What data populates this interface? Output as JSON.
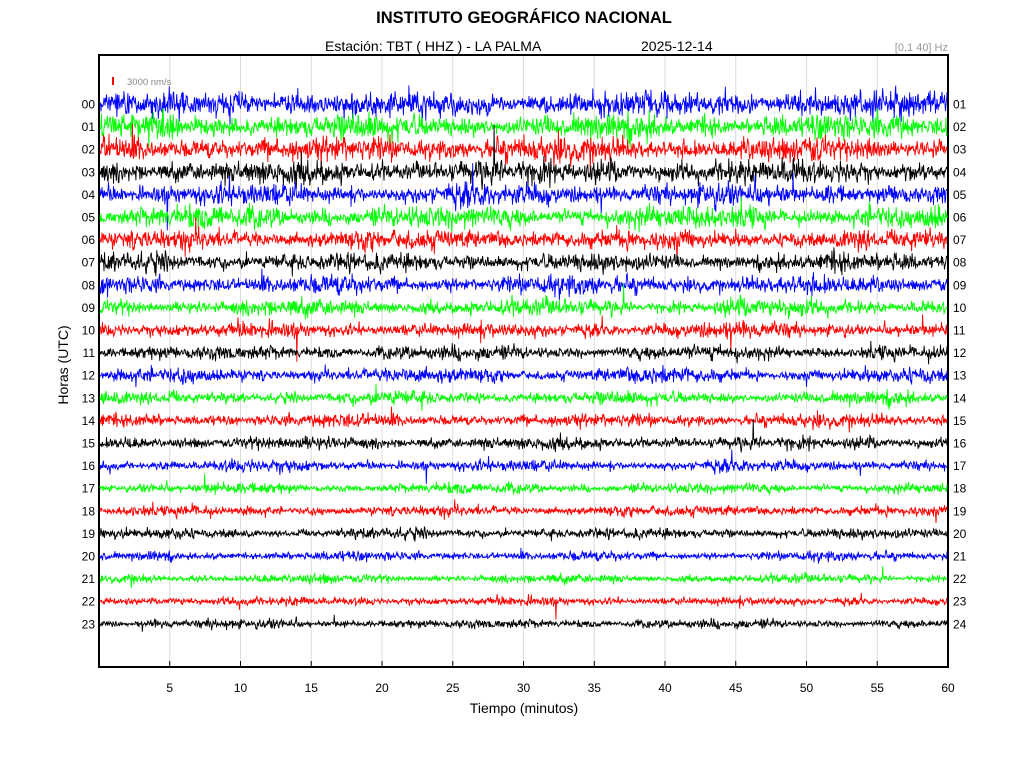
{
  "header": {
    "title": "INSTITUTO GEOGRÁFICO NACIONAL",
    "station": "Estación:  TBT ( HHZ ) - LA PALMA",
    "date": "2025-12-14",
    "filter": "[0.1 40] Hz"
  },
  "chart_data": {
    "type": "line",
    "title": "INSTITUTO GEOGRÁFICO NACIONAL",
    "xlabel": "Tiempo (minutos)",
    "ylabel": "Horas (UTC)",
    "xlim": [
      0,
      60
    ],
    "x_ticks": [
      "5",
      "10",
      "15",
      "20",
      "25",
      "30",
      "35",
      "40",
      "45",
      "50",
      "55",
      "60"
    ],
    "left_labels": [
      "00",
      "01",
      "02",
      "03",
      "04",
      "05",
      "06",
      "07",
      "08",
      "09",
      "10",
      "11",
      "12",
      "13",
      "14",
      "15",
      "16",
      "17",
      "18",
      "19",
      "20",
      "21",
      "22",
      "23"
    ],
    "right_labels": [
      "01",
      "02",
      "03",
      "04",
      "05",
      "06",
      "07",
      "08",
      "09",
      "10",
      "11",
      "12",
      "13",
      "14",
      "15",
      "16",
      "17",
      "18",
      "19",
      "20",
      "21",
      "22",
      "23",
      "24"
    ],
    "trace_colors": [
      "#0000ff",
      "#00ff00",
      "#ff0000",
      "#000000"
    ],
    "trace_amplitudes": [
      1.0,
      0.95,
      0.95,
      0.95,
      0.85,
      0.85,
      0.75,
      0.7,
      0.7,
      0.65,
      0.6,
      0.55,
      0.55,
      0.5,
      0.5,
      0.5,
      0.45,
      0.4,
      0.4,
      0.4,
      0.35,
      0.35,
      0.35,
      0.35
    ],
    "scale_bar": {
      "label": "3000 nm/s",
      "color": "#ff0000"
    },
    "grid": true
  }
}
